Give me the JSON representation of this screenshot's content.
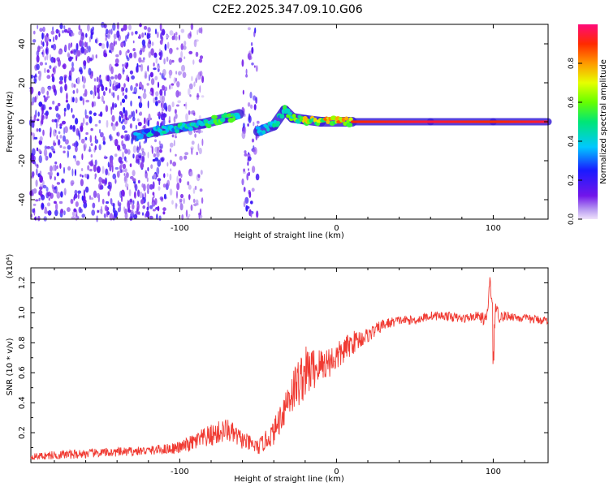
{
  "title": "C2E2.2025.347.09.10.G06",
  "chart_data": [
    {
      "type": "heatmap",
      "xlabel": "Height of straight line (km)",
      "ylabel": "Frequency (Hz)",
      "xlim": [
        -195,
        135
      ],
      "ylim": [
        -50,
        50
      ],
      "xticks": [
        -100,
        0,
        100
      ],
      "yticks": [
        -40,
        -20,
        0,
        20,
        40
      ],
      "colorbar": {
        "label": "Normalized spectral amplitude",
        "range": [
          0,
          1
        ],
        "ticks": [
          0.0,
          0.2,
          0.4,
          0.6,
          0.8
        ]
      },
      "regions": [
        {
          "name": "noise",
          "x_range": [
            -195,
            -108
          ],
          "freq_range": [
            -50,
            50
          ],
          "amplitude": 0.15
        },
        {
          "name": "noise-fading",
          "x_range": [
            -108,
            -85
          ],
          "freq_range": [
            -50,
            50
          ],
          "amplitude": 0.08
        },
        {
          "name": "band",
          "x_range": [
            -60,
            -50
          ],
          "freq_range": [
            -50,
            50
          ],
          "amplitude": 0.15
        }
      ],
      "ridge": [
        {
          "x": -128,
          "f": -7,
          "amp": 0.35
        },
        {
          "x": -115,
          "f": -5,
          "amp": 0.45
        },
        {
          "x": -100,
          "f": -3,
          "amp": 0.5
        },
        {
          "x": -85,
          "f": -1,
          "amp": 0.5
        },
        {
          "x": -70,
          "f": 2,
          "amp": 0.55
        },
        {
          "x": -62,
          "f": 4,
          "amp": 0.55
        },
        {
          "x": -50,
          "f": -5,
          "amp": 0.4
        },
        {
          "x": -40,
          "f": -2,
          "amp": 0.45
        },
        {
          "x": -33,
          "f": 6,
          "amp": 0.5
        },
        {
          "x": -28,
          "f": 2,
          "amp": 0.6
        },
        {
          "x": -20,
          "f": 1,
          "amp": 0.7
        },
        {
          "x": -10,
          "f": 0,
          "amp": 0.75
        },
        {
          "x": 10,
          "f": 0,
          "amp": 0.9
        },
        {
          "x": 60,
          "f": 0,
          "amp": 0.95
        },
        {
          "x": 100,
          "f": 0,
          "amp": 0.9
        },
        {
          "x": 135,
          "f": 0,
          "amp": 0.95
        }
      ]
    },
    {
      "type": "line",
      "xlabel": "Height of straight line (km)",
      "ylabel": "SNR (10 * v/v)",
      "yscale_label": "(x10⁴)",
      "xlim": [
        -195,
        135
      ],
      "ylim": [
        0,
        1.3
      ],
      "xticks": [
        -100,
        0,
        100
      ],
      "yticks": [
        0.2,
        0.4,
        0.6,
        0.8,
        1.0,
        1.2
      ],
      "color": "#f03a32",
      "series": [
        {
          "name": "SNR",
          "x": [
            -195,
            -180,
            -160,
            -140,
            -120,
            -100,
            -85,
            -75,
            -70,
            -60,
            -50,
            -40,
            -30,
            -20,
            -10,
            0,
            10,
            20,
            30,
            40,
            50,
            60,
            70,
            80,
            90,
            96,
            98,
            100,
            102,
            104,
            110,
            120,
            135
          ],
          "y": [
            0.04,
            0.05,
            0.06,
            0.07,
            0.08,
            0.1,
            0.16,
            0.2,
            0.22,
            0.15,
            0.1,
            0.2,
            0.45,
            0.6,
            0.65,
            0.7,
            0.8,
            0.85,
            0.92,
            0.95,
            0.95,
            0.98,
            0.98,
            0.96,
            0.98,
            0.95,
            1.25,
            0.8,
            1.05,
            0.97,
            0.98,
            0.96,
            0.95
          ],
          "noise": [
            0.02,
            0.03,
            0.03,
            0.03,
            0.03,
            0.04,
            0.07,
            0.08,
            0.08,
            0.06,
            0.05,
            0.08,
            0.15,
            0.18,
            0.12,
            0.1,
            0.08,
            0.05,
            0.04,
            0.03,
            0.03,
            0.03,
            0.03,
            0.03,
            0.03,
            0.05,
            0.06,
            0.2,
            0.06,
            0.04,
            0.03,
            0.03,
            0.03
          ]
        }
      ]
    }
  ]
}
